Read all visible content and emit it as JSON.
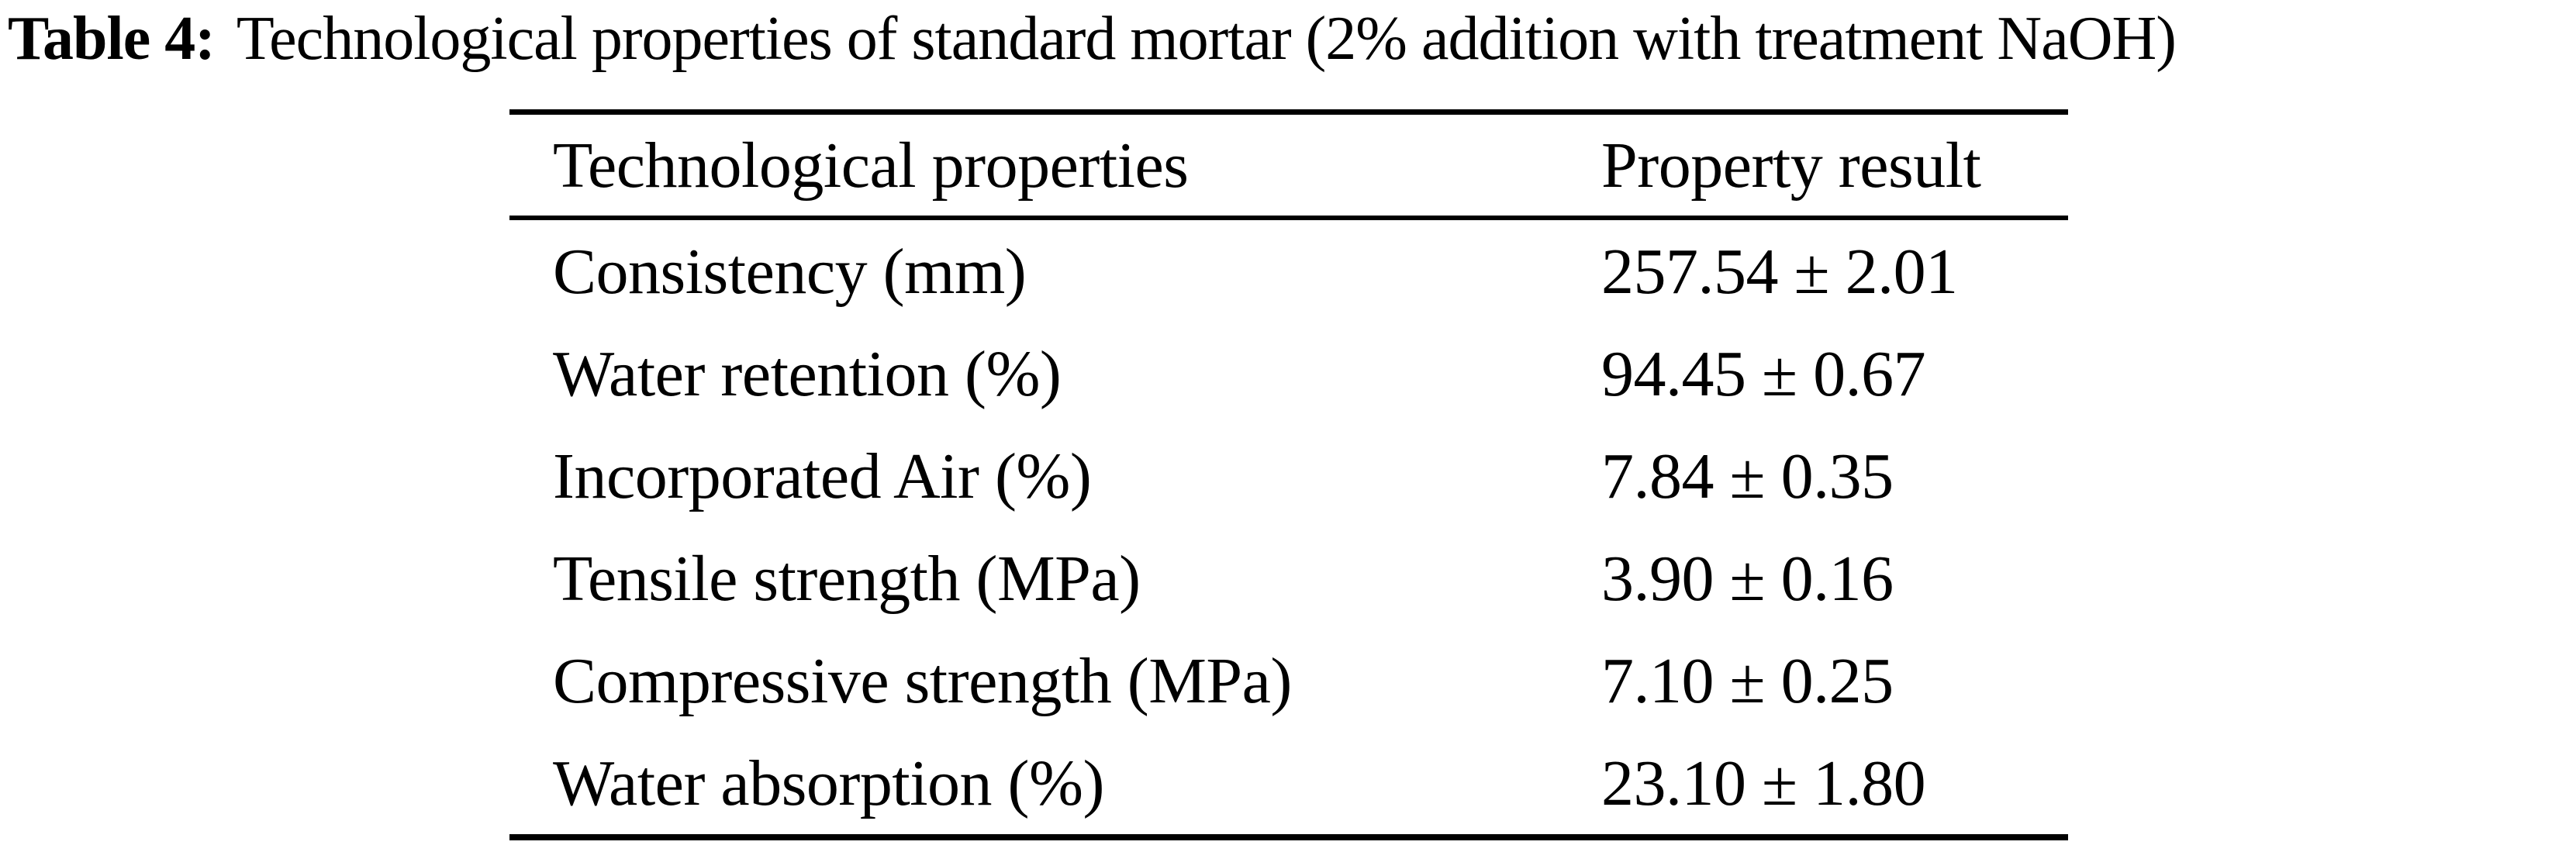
{
  "title": {
    "label": "Table 4:",
    "caption": "Technological properties of standard mortar (2% addition with treatment NaOH)"
  },
  "table": {
    "columns": [
      "Technological properties",
      "Property result"
    ],
    "rows": [
      {
        "property": "Consistency (mm)",
        "result": "257.54 ± 2.01"
      },
      {
        "property": "Water retention (%)",
        "result": "94.45 ± 0.67"
      },
      {
        "property": "Incorporated Air (%)",
        "result": "7.84 ± 0.35"
      },
      {
        "property": "Tensile strength (MPa)",
        "result": "3.90 ± 0.16"
      },
      {
        "property": "Compressive strength (MPa)",
        "result": "7.10 ± 0.25"
      },
      {
        "property": "Water absorption (%)",
        "result": "23.10 ± 1.80"
      }
    ]
  },
  "colors": {
    "text": "#000000",
    "background": "#ffffff",
    "rule": "#000000"
  }
}
